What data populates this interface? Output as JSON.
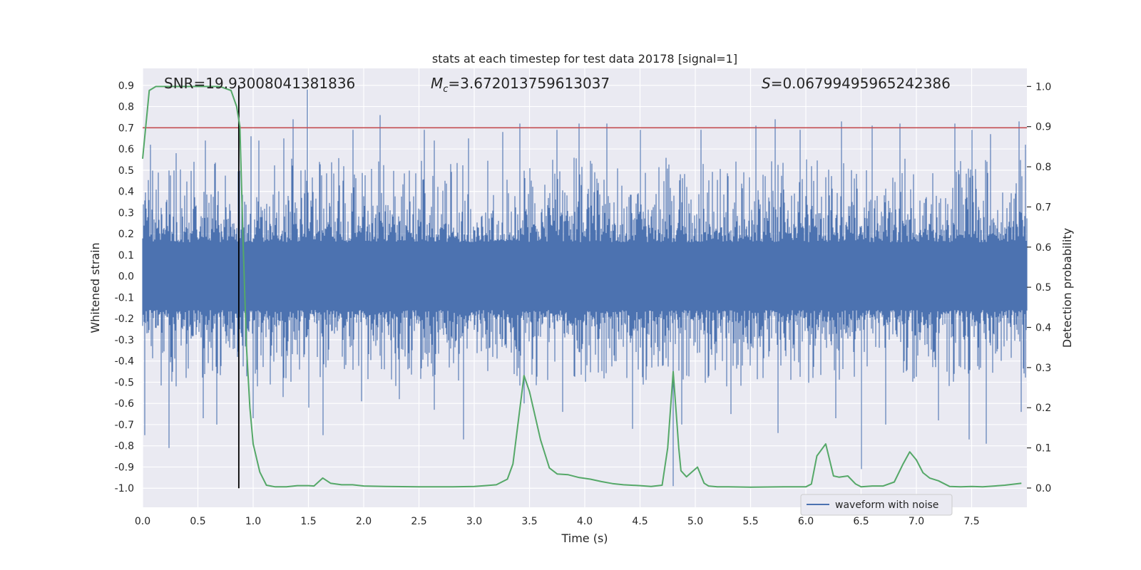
{
  "chart_data": {
    "type": "line",
    "title": "stats at each timestep for test data 20178 [signal=1]",
    "xlabel": "Time (s)",
    "ylabel_left": "Whitened strain",
    "ylabel_right": "Detection probability",
    "xlim": [
      0.0,
      8.0
    ],
    "ylim_left": [
      -1.09,
      0.98
    ],
    "ylim_right": [
      -0.048,
      1.045
    ],
    "x_ticks": [
      "0.0",
      "0.5",
      "1.0",
      "1.5",
      "2.0",
      "2.5",
      "3.0",
      "3.5",
      "4.0",
      "4.5",
      "5.0",
      "5.5",
      "6.0",
      "6.5",
      "7.0",
      "7.5"
    ],
    "y_left_ticks": [
      "0.9",
      "0.8",
      "0.7",
      "0.6",
      "0.5",
      "0.4",
      "0.3",
      "0.2",
      "0.1",
      "0.0",
      "-0.1",
      "-0.2",
      "-0.3",
      "-0.4",
      "-0.5",
      "-0.6",
      "-0.7",
      "-0.8",
      "-0.9",
      "-1.0"
    ],
    "y_right_ticks": [
      "1.0",
      "0.9",
      "0.8",
      "0.7",
      "0.6",
      "0.5",
      "0.4",
      "0.3",
      "0.2",
      "0.1",
      "0.0"
    ],
    "grid": true,
    "legend": {
      "position": "lower-right",
      "entries": [
        "waveform with noise"
      ]
    },
    "annotations": {
      "snr": "SNR=19.93008041381836",
      "mc_symbol": "M",
      "mc_sub": "c",
      "mc_value": "=3.672013759613037",
      "s_symbol": "S",
      "s_value": "=0.06799495965242386"
    },
    "threshold": {
      "value": 0.7,
      "color": "#c44e52"
    },
    "marker_line": {
      "x": 0.87,
      "y_top": 0.9,
      "y_bottom": -1.0,
      "color": "#000000"
    },
    "waveform": {
      "name": "waveform with noise",
      "color": "#4c72b0",
      "typical_low": -0.42,
      "typical_high": 0.46,
      "spikes_up": [
        [
          0.07,
          0.62
        ],
        [
          0.3,
          0.58
        ],
        [
          0.57,
          0.64
        ],
        [
          0.98,
          0.66
        ],
        [
          1.05,
          0.64
        ],
        [
          1.28,
          0.65
        ],
        [
          1.36,
          0.74
        ],
        [
          1.49,
          0.88
        ],
        [
          1.9,
          0.69
        ],
        [
          2.15,
          0.76
        ],
        [
          2.55,
          0.69
        ],
        [
          2.64,
          0.64
        ],
        [
          2.95,
          0.65
        ],
        [
          3.26,
          0.68
        ],
        [
          3.41,
          0.72
        ],
        [
          3.75,
          0.69
        ],
        [
          3.95,
          0.72
        ],
        [
          4.2,
          0.72
        ],
        [
          4.5,
          0.69
        ],
        [
          5.05,
          0.69
        ],
        [
          5.55,
          0.71
        ],
        [
          5.72,
          0.74
        ],
        [
          5.95,
          0.69
        ],
        [
          6.32,
          0.73
        ],
        [
          6.6,
          0.71
        ],
        [
          6.85,
          0.72
        ],
        [
          7.35,
          0.72
        ],
        [
          7.5,
          0.69
        ],
        [
          7.67,
          0.67
        ],
        [
          7.93,
          0.73
        ],
        [
          7.99,
          0.62
        ]
      ],
      "spikes_down": [
        [
          0.02,
          -0.75
        ],
        [
          0.24,
          -0.81
        ],
        [
          0.55,
          -0.67
        ],
        [
          0.67,
          -0.7
        ],
        [
          1.0,
          -0.67
        ],
        [
          1.27,
          -0.57
        ],
        [
          1.5,
          -0.62
        ],
        [
          1.63,
          -0.75
        ],
        [
          1.98,
          -0.59
        ],
        [
          2.32,
          -0.58
        ],
        [
          2.64,
          -0.63
        ],
        [
          2.9,
          -0.77
        ],
        [
          3.45,
          -0.6
        ],
        [
          3.8,
          -0.64
        ],
        [
          4.43,
          -0.72
        ],
        [
          4.8,
          -0.99
        ],
        [
          4.88,
          -0.7
        ],
        [
          5.32,
          -0.65
        ],
        [
          5.75,
          -0.74
        ],
        [
          6.27,
          -0.67
        ],
        [
          6.5,
          -0.91
        ],
        [
          6.72,
          -0.7
        ],
        [
          7.2,
          -0.68
        ],
        [
          7.48,
          -0.77
        ],
        [
          7.63,
          -0.79
        ],
        [
          7.95,
          -0.64
        ]
      ]
    },
    "probability": {
      "name": "Detection probability",
      "color": "#55a868",
      "x": [
        0.0,
        0.06,
        0.12,
        0.2,
        0.3,
        0.4,
        0.5,
        0.6,
        0.7,
        0.8,
        0.85,
        0.88,
        0.91,
        0.94,
        0.97,
        1.0,
        1.06,
        1.12,
        1.2,
        1.3,
        1.4,
        1.5,
        1.55,
        1.63,
        1.7,
        1.8,
        1.9,
        2.0,
        2.2,
        2.5,
        2.8,
        3.0,
        3.1,
        3.2,
        3.3,
        3.35,
        3.45,
        3.5,
        3.6,
        3.68,
        3.75,
        3.85,
        3.95,
        4.05,
        4.15,
        4.25,
        4.35,
        4.5,
        4.6,
        4.7,
        4.75,
        4.8,
        4.85,
        4.87,
        4.92,
        4.97,
        5.02,
        5.08,
        5.12,
        5.2,
        5.3,
        5.5,
        5.8,
        6.0,
        6.05,
        6.1,
        6.18,
        6.25,
        6.3,
        6.38,
        6.45,
        6.5,
        6.6,
        6.7,
        6.8,
        6.88,
        6.94,
        7.0,
        7.06,
        7.12,
        7.2,
        7.3,
        7.4,
        7.5,
        7.6,
        7.8,
        7.95
      ],
      "y": [
        0.82,
        0.99,
        1.0,
        1.0,
        1.0,
        1.0,
        1.0,
        1.0,
        1.0,
        0.99,
        0.95,
        0.9,
        0.6,
        0.35,
        0.2,
        0.11,
        0.04,
        0.007,
        0.003,
        0.003,
        0.006,
        0.006,
        0.005,
        0.025,
        0.012,
        0.008,
        0.008,
        0.005,
        0.004,
        0.003,
        0.003,
        0.004,
        0.006,
        0.008,
        0.022,
        0.06,
        0.28,
        0.24,
        0.12,
        0.05,
        0.035,
        0.033,
        0.026,
        0.022,
        0.016,
        0.011,
        0.008,
        0.006,
        0.004,
        0.007,
        0.1,
        0.29,
        0.1,
        0.043,
        0.028,
        0.04,
        0.052,
        0.012,
        0.005,
        0.003,
        0.003,
        0.002,
        0.003,
        0.003,
        0.01,
        0.08,
        0.11,
        0.03,
        0.027,
        0.03,
        0.01,
        0.003,
        0.005,
        0.005,
        0.015,
        0.06,
        0.09,
        0.07,
        0.038,
        0.025,
        0.018,
        0.004,
        0.003,
        0.004,
        0.003,
        0.007,
        0.012
      ]
    }
  }
}
